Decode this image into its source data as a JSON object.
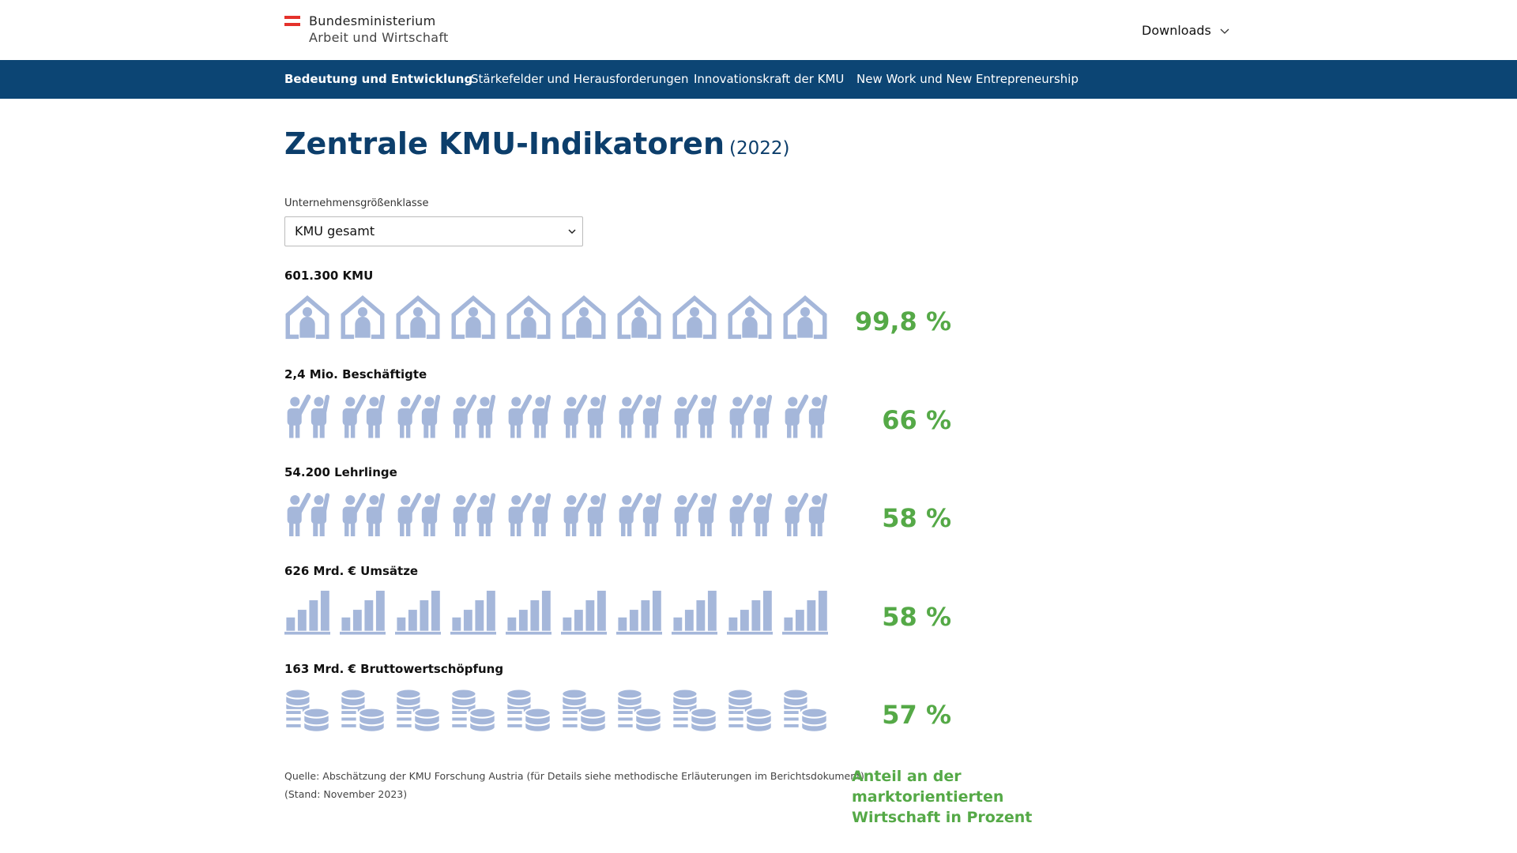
{
  "header": {
    "ministry_line1": "Bundesministerium",
    "ministry_line2": "Arbeit und Wirtschaft",
    "downloads": "Downloads"
  },
  "nav": [
    "Bedeutung und Entwicklung",
    "Stärkefelder und Herausforderungen",
    "Innovationskraft der KMU",
    "New Work und New Entrepreneurship"
  ],
  "title": "Zentrale KMU-Indikatoren",
  "title_year": "(2022)",
  "select": {
    "label": "Unternehmensgrößenklasse",
    "value": "KMU gesamt"
  },
  "indicators": [
    {
      "label": "601.300 KMU",
      "icon": "house",
      "value": 99.8,
      "value_label": "99,8 %"
    },
    {
      "label": "2,4 Mio. Beschäftigte",
      "icon": "workers",
      "value": 66,
      "value_label": "66 %"
    },
    {
      "label": "54.200 Lehrlinge",
      "icon": "workers",
      "value": 58,
      "value_label": "58 %"
    },
    {
      "label": "626 Mrd. € Umsätze",
      "icon": "bars",
      "value": 58,
      "value_label": "58 %"
    },
    {
      "label": "163 Mrd. € Bruttowertschöpfung",
      "icon": "coins",
      "value": 57,
      "value_label": "57 %"
    }
  ],
  "source": "Quelle: Abschätzung der KMU Forschung Austria (für Details siehe methodische Erläuterungen im Berichtsdokument)",
  "stand": "(Stand: November 2023)",
  "note": "Anteil an der marktorientierten Wirtschaft in Prozent"
}
